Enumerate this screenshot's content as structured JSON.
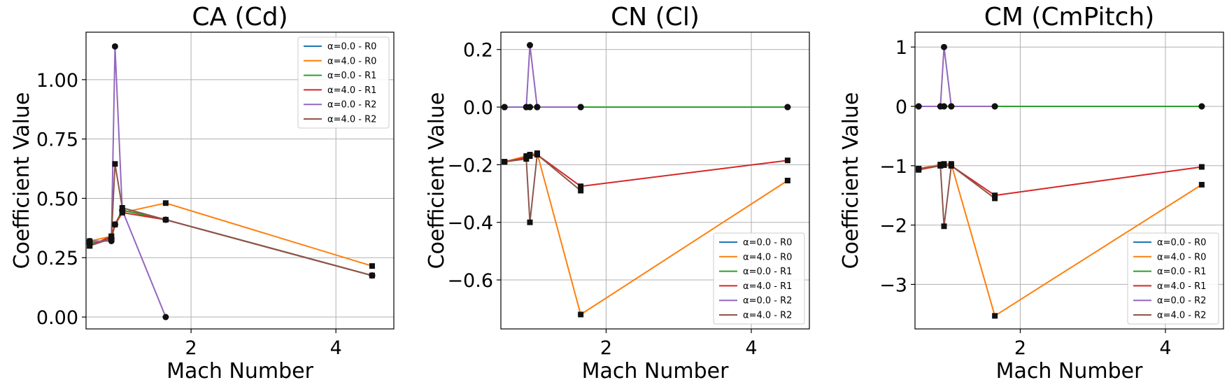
{
  "chart_data": [
    {
      "type": "line",
      "title": "CA (Cd)",
      "xlabel": "Mach Number",
      "ylabel": "Coefficient Value",
      "xlim": [
        0.55,
        4.8
      ],
      "ylim": [
        -0.05,
        1.2
      ],
      "xticks": [
        2,
        4
      ],
      "yticks": [
        0.0,
        0.25,
        0.5,
        0.75,
        1.0
      ],
      "ytick_labels": [
        "0.00",
        "0.25",
        "0.50",
        "0.75",
        "1.00"
      ],
      "grid": true,
      "legend_position": "top-right",
      "series": [
        {
          "name": "α=0.0 - R0",
          "color": "#1f77b4",
          "marker": "circle",
          "x": [
            0.6,
            0.9,
            0.95,
            1.05,
            1.65,
            4.5
          ],
          "y": [
            0.31,
            0.33,
            0.39,
            0.45,
            0.41,
            0.175
          ]
        },
        {
          "name": "α=4.0 - R0",
          "color": "#ff7f0e",
          "marker": "square",
          "x": [
            0.6,
            0.9,
            0.95,
            1.05,
            1.65,
            4.5
          ],
          "y": [
            0.32,
            0.34,
            0.39,
            0.44,
            0.48,
            0.215
          ]
        },
        {
          "name": "α=0.0 - R1",
          "color": "#2ca02c",
          "marker": "circle",
          "x": [
            0.6,
            0.9,
            0.95,
            1.05,
            1.65,
            4.5
          ],
          "y": [
            0.31,
            0.33,
            0.39,
            0.45,
            0.41,
            0.175
          ]
        },
        {
          "name": "α=4.0 - R1",
          "color": "#d62728",
          "marker": "square",
          "x": [
            0.6,
            0.9,
            0.95,
            1.05,
            1.65,
            4.5
          ],
          "y": [
            0.3,
            0.34,
            0.39,
            0.44,
            0.41,
            0.175
          ]
        },
        {
          "name": "α=0.0 - R2",
          "color": "#9467bd",
          "marker": "circle",
          "x": [
            0.6,
            0.9,
            0.95,
            1.05,
            1.65
          ],
          "y": [
            0.32,
            0.32,
            1.14,
            0.45,
            0.0
          ]
        },
        {
          "name": "α=4.0 - R2",
          "color": "#8c564b",
          "marker": "square",
          "x": [
            0.6,
            0.9,
            0.95,
            1.05,
            1.65,
            4.5
          ],
          "y": [
            0.3,
            0.33,
            0.645,
            0.46,
            0.41,
            0.175
          ]
        }
      ]
    },
    {
      "type": "line",
      "title": "CN (Cl)",
      "xlabel": "Mach Number",
      "ylabel": "Coefficient Value",
      "xlim": [
        0.55,
        4.8
      ],
      "ylim": [
        -0.77,
        0.26
      ],
      "xticks": [
        2,
        4
      ],
      "yticks": [
        -0.6,
        -0.4,
        -0.2,
        0.0,
        0.2
      ],
      "ytick_labels": [
        "−0.6",
        "−0.4",
        "−0.2",
        "0.0",
        "0.2"
      ],
      "grid": true,
      "legend_position": "bottom-right",
      "series": [
        {
          "name": "α=0.0 - R0",
          "color": "#1f77b4",
          "marker": "circle",
          "x": [
            0.6,
            0.9,
            0.95,
            1.05,
            1.65,
            4.5
          ],
          "y": [
            0.0,
            0.0,
            0.0,
            0.0,
            0.0,
            0.0
          ]
        },
        {
          "name": "α=4.0 - R0",
          "color": "#ff7f0e",
          "marker": "square",
          "x": [
            0.6,
            0.9,
            0.95,
            1.05,
            1.65,
            4.5
          ],
          "y": [
            -0.19,
            -0.17,
            -0.165,
            -0.16,
            -0.72,
            -0.255
          ]
        },
        {
          "name": "α=0.0 - R1",
          "color": "#2ca02c",
          "marker": "circle",
          "x": [
            0.6,
            0.9,
            0.95,
            1.05,
            1.65,
            4.5
          ],
          "y": [
            0.0,
            0.0,
            0.0,
            0.0,
            0.0,
            0.0
          ]
        },
        {
          "name": "α=4.0 - R1",
          "color": "#d62728",
          "marker": "square",
          "x": [
            0.6,
            0.9,
            0.95,
            1.05,
            1.65,
            4.5
          ],
          "y": [
            -0.19,
            -0.175,
            -0.17,
            -0.165,
            -0.275,
            -0.185
          ]
        },
        {
          "name": "α=0.0 - R2",
          "color": "#9467bd",
          "marker": "circle",
          "x": [
            0.6,
            0.9,
            0.95,
            1.05,
            1.65
          ],
          "y": [
            0.0,
            0.0,
            0.215,
            0.0,
            0.0
          ]
        },
        {
          "name": "α=4.0 - R2",
          "color": "#8c564b",
          "marker": "square",
          "x": [
            0.6,
            0.9,
            0.95,
            1.05,
            1.65
          ],
          "y": [
            -0.19,
            -0.18,
            -0.4,
            -0.165,
            -0.29
          ]
        }
      ]
    },
    {
      "type": "line",
      "title": "CM (CmPitch)",
      "xlabel": "Mach Number",
      "ylabel": "Coefficient Value",
      "xlim": [
        0.55,
        4.8
      ],
      "ylim": [
        -3.75,
        1.25
      ],
      "xticks": [
        2,
        4
      ],
      "yticks": [
        -3,
        -2,
        -1,
        0,
        1
      ],
      "ytick_labels": [
        "−3",
        "−2",
        "−1",
        "0",
        "1"
      ],
      "grid": true,
      "legend_position": "bottom-right",
      "series": [
        {
          "name": "α=0.0 - R0",
          "color": "#1f77b4",
          "marker": "circle",
          "x": [
            0.6,
            0.9,
            0.95,
            1.05,
            1.65,
            4.5
          ],
          "y": [
            0.0,
            0.0,
            0.0,
            0.0,
            0.0,
            0.0
          ]
        },
        {
          "name": "α=4.0 - R0",
          "color": "#ff7f0e",
          "marker": "square",
          "x": [
            0.6,
            0.9,
            0.95,
            1.05,
            1.65,
            4.5
          ],
          "y": [
            -1.05,
            -0.98,
            -0.97,
            -0.97,
            -3.53,
            -1.32
          ]
        },
        {
          "name": "α=0.0 - R1",
          "color": "#2ca02c",
          "marker": "circle",
          "x": [
            0.6,
            0.9,
            0.95,
            1.05,
            1.65,
            4.5
          ],
          "y": [
            0.0,
            0.0,
            0.0,
            0.0,
            0.0,
            0.0
          ]
        },
        {
          "name": "α=4.0 - R1",
          "color": "#d62728",
          "marker": "square",
          "x": [
            0.6,
            0.9,
            0.95,
            1.05,
            1.65,
            4.5
          ],
          "y": [
            -1.07,
            -1.0,
            -0.99,
            -1.0,
            -1.5,
            -1.02
          ]
        },
        {
          "name": "α=0.0 - R2",
          "color": "#9467bd",
          "marker": "circle",
          "x": [
            0.6,
            0.9,
            0.95,
            1.05,
            1.65
          ],
          "y": [
            0.0,
            0.0,
            1.0,
            0.0,
            0.0
          ]
        },
        {
          "name": "α=4.0 - R2",
          "color": "#8c564b",
          "marker": "square",
          "x": [
            0.6,
            0.9,
            0.95,
            1.05,
            1.65
          ],
          "y": [
            -1.05,
            -1.0,
            -2.02,
            -1.0,
            -1.55
          ]
        }
      ]
    }
  ]
}
